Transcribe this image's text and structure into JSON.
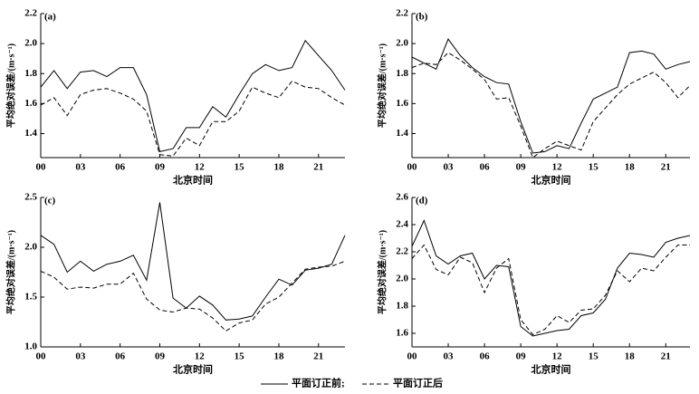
{
  "chart_data": [
    {
      "type": "line",
      "panel": "(a)",
      "xlabel": "北京时间",
      "ylabel": "平均绝对误差/(m·s⁻¹)",
      "x": [
        0,
        1,
        2,
        3,
        4,
        5,
        6,
        7,
        8,
        9,
        10,
        11,
        12,
        13,
        14,
        15,
        16,
        17,
        18,
        19,
        20,
        21,
        22,
        23
      ],
      "xlim": [
        0,
        23
      ],
      "xticks": [
        {
          "value": 0,
          "label": "00"
        },
        {
          "value": 3,
          "label": "03"
        },
        {
          "value": 6,
          "label": "06"
        },
        {
          "value": 9,
          "label": "09"
        },
        {
          "value": 12,
          "label": "12"
        },
        {
          "value": 15,
          "label": "15"
        },
        {
          "value": 18,
          "label": "18"
        },
        {
          "value": 21,
          "label": "21"
        }
      ],
      "ylim": [
        1.24,
        2.2
      ],
      "yticks": [
        2.2,
        {
          "value": 2,
          "label": "2.0"
        },
        1.8,
        1.6,
        1.4
      ],
      "series": [
        {
          "color": "#000000",
          "dash": "solid",
          "values": [
            1.71,
            1.82,
            1.7,
            1.81,
            1.82,
            1.78,
            1.84,
            1.84,
            1.66,
            1.28,
            1.3,
            1.44,
            1.44,
            1.58,
            1.51,
            1.66,
            1.8,
            1.86,
            1.82,
            1.84,
            2.02,
            1.92,
            1.82,
            1.69
          ]
        },
        {
          "color": "#000000",
          "dash": "dashed",
          "values": [
            1.59,
            1.64,
            1.52,
            1.66,
            1.69,
            1.7,
            1.67,
            1.63,
            1.55,
            1.26,
            1.25,
            1.37,
            1.32,
            1.48,
            1.48,
            1.55,
            1.71,
            1.67,
            1.64,
            1.75,
            1.71,
            1.7,
            1.64,
            1.59
          ]
        }
      ]
    },
    {
      "type": "line",
      "panel": "(b)",
      "xlabel": "北京时间",
      "ylabel": "平均绝对误差/(m·s⁻¹)",
      "x": [
        0,
        1,
        2,
        3,
        4,
        5,
        6,
        7,
        8,
        9,
        10,
        11,
        12,
        13,
        14,
        15,
        16,
        17,
        18,
        19,
        20,
        21,
        22,
        23
      ],
      "xlim": [
        0,
        23
      ],
      "xticks": [
        {
          "value": 0,
          "label": "00"
        },
        {
          "value": 3,
          "label": "03"
        },
        {
          "value": 6,
          "label": "06"
        },
        {
          "value": 9,
          "label": "09"
        },
        {
          "value": 12,
          "label": "12"
        },
        {
          "value": 15,
          "label": "15"
        },
        {
          "value": 18,
          "label": "18"
        },
        {
          "value": 21,
          "label": "21"
        }
      ],
      "ylim": [
        1.24,
        2.2
      ],
      "yticks": [
        2.2,
        {
          "value": 2,
          "label": "2.0"
        },
        1.8,
        1.6,
        1.4
      ],
      "series": [
        {
          "color": "#000000",
          "dash": "solid",
          "values": [
            1.91,
            1.87,
            1.83,
            2.03,
            1.92,
            1.84,
            1.78,
            1.74,
            1.73,
            1.48,
            1.27,
            1.28,
            1.32,
            1.3,
            1.47,
            1.63,
            1.67,
            1.71,
            1.94,
            1.95,
            1.93,
            1.83,
            1.86,
            1.88
          ]
        },
        {
          "color": "#000000",
          "dash": "dashed",
          "values": [
            1.84,
            1.87,
            1.86,
            1.94,
            1.89,
            1.83,
            1.76,
            1.63,
            1.64,
            1.45,
            1.24,
            1.3,
            1.35,
            1.32,
            1.29,
            1.48,
            1.57,
            1.66,
            1.73,
            1.77,
            1.81,
            1.74,
            1.64,
            1.72
          ]
        }
      ]
    },
    {
      "type": "line",
      "panel": "(c)",
      "xlabel": "北京时间",
      "ylabel": "平均绝对误差/(m·s⁻¹)",
      "x": [
        0,
        1,
        2,
        3,
        4,
        5,
        6,
        7,
        8,
        9,
        10,
        11,
        12,
        13,
        14,
        15,
        16,
        17,
        18,
        19,
        20,
        21,
        22,
        23
      ],
      "xlim": [
        0,
        23
      ],
      "xticks": [
        {
          "value": 0,
          "label": "00"
        },
        {
          "value": 3,
          "label": "03"
        },
        {
          "value": 6,
          "label": "06"
        },
        {
          "value": 9,
          "label": "09"
        },
        {
          "value": 12,
          "label": "12"
        },
        {
          "value": 15,
          "label": "15"
        },
        {
          "value": 18,
          "label": "18"
        },
        {
          "value": 21,
          "label": "21"
        }
      ],
      "ylim": [
        1,
        2.5
      ],
      "yticks": [
        2.5,
        {
          "value": 2,
          "label": "2.0"
        },
        1.5,
        {
          "value": 1,
          "label": "1.0"
        }
      ],
      "series": [
        {
          "color": "#000000",
          "dash": "solid",
          "values": [
            2.12,
            2.03,
            1.75,
            1.86,
            1.76,
            1.83,
            1.86,
            1.92,
            1.67,
            2.45,
            1.49,
            1.39,
            1.51,
            1.42,
            1.27,
            1.28,
            1.31,
            1.5,
            1.68,
            1.62,
            1.77,
            1.79,
            1.83,
            2.12
          ]
        },
        {
          "color": "#000000",
          "dash": "dashed",
          "values": [
            1.76,
            1.7,
            1.58,
            1.6,
            1.59,
            1.63,
            1.63,
            1.74,
            1.48,
            1.37,
            1.35,
            1.39,
            1.38,
            1.29,
            1.16,
            1.24,
            1.27,
            1.43,
            1.5,
            1.64,
            1.78,
            1.8,
            1.81,
            1.86
          ]
        }
      ]
    },
    {
      "type": "line",
      "panel": "(d)",
      "xlabel": "北京时间",
      "ylabel": "平均绝对误差/(m·s⁻¹)",
      "x": [
        0,
        1,
        2,
        3,
        4,
        5,
        6,
        7,
        8,
        9,
        10,
        11,
        12,
        13,
        14,
        15,
        16,
        17,
        18,
        19,
        20,
        21,
        22,
        23
      ],
      "xlim": [
        0,
        23
      ],
      "xticks": [
        {
          "value": 0,
          "label": "00"
        },
        {
          "value": 3,
          "label": "03"
        },
        {
          "value": 6,
          "label": "06"
        },
        {
          "value": 9,
          "label": "09"
        },
        {
          "value": 12,
          "label": "12"
        },
        {
          "value": 15,
          "label": "15"
        },
        {
          "value": 18,
          "label": "18"
        },
        {
          "value": 21,
          "label": "21"
        }
      ],
      "ylim": [
        1.5,
        2.6
      ],
      "yticks": [
        2.6,
        2.4,
        2.2,
        {
          "value": 2,
          "label": "2.0"
        },
        1.8,
        1.6
      ],
      "series": [
        {
          "color": "#000000",
          "dash": "solid",
          "values": [
            2.24,
            2.43,
            2.17,
            2.11,
            2.17,
            2.19,
            2.0,
            2.1,
            2.09,
            1.65,
            1.58,
            1.6,
            1.62,
            1.63,
            1.73,
            1.75,
            1.85,
            2.08,
            2.19,
            2.18,
            2.16,
            2.27,
            2.3,
            2.32
          ]
        },
        {
          "color": "#000000",
          "dash": "dashed",
          "values": [
            2.15,
            2.25,
            2.07,
            2.03,
            2.16,
            2.12,
            1.9,
            2.08,
            2.15,
            1.7,
            1.59,
            1.63,
            1.73,
            1.68,
            1.77,
            1.78,
            1.88,
            2.06,
            1.98,
            2.08,
            2.06,
            2.16,
            2.25,
            2.25
          ]
        }
      ]
    }
  ],
  "legend": {
    "items": [
      {
        "label": "平面订正前;",
        "dash": "solid"
      },
      {
        "label": "平面订正后",
        "dash": "dashed"
      }
    ]
  }
}
